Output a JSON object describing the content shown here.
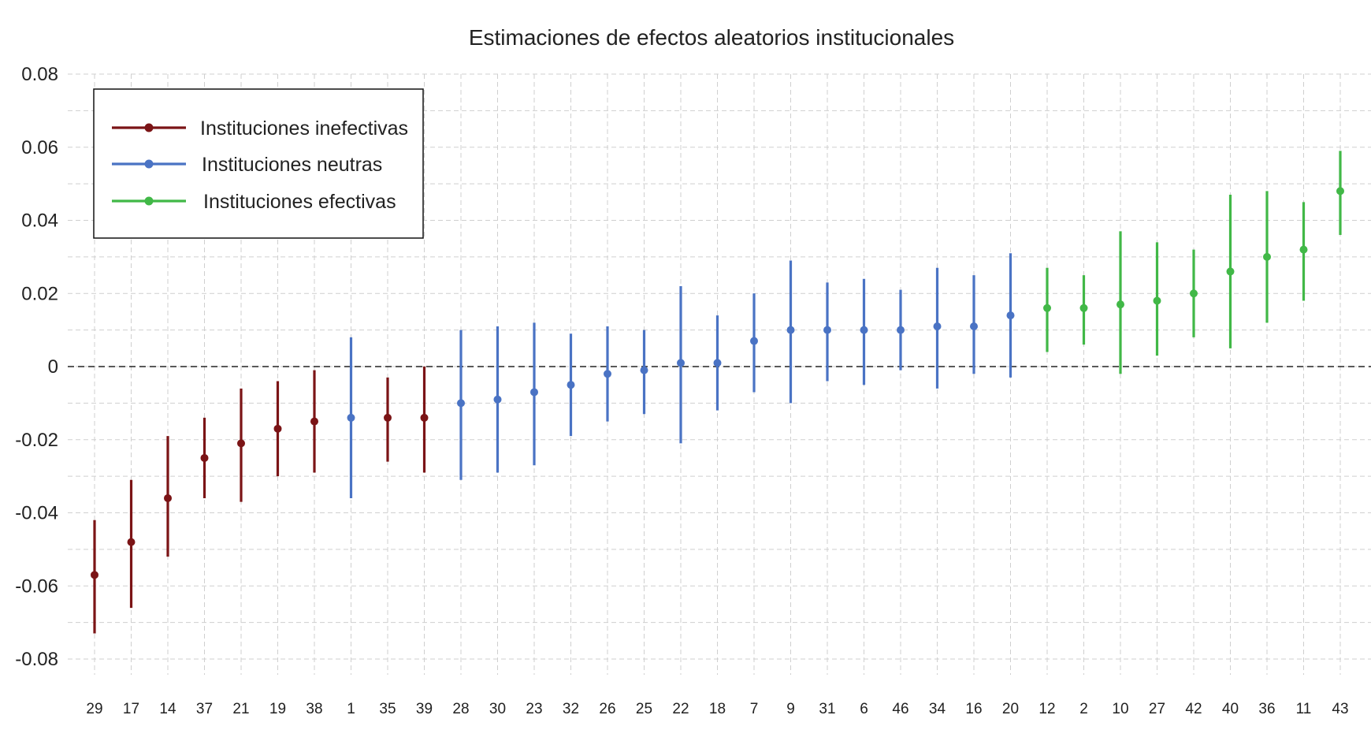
{
  "chart_data": {
    "type": "errorbar",
    "title": "Estimaciones de efectos aleatorios institucionales",
    "xlabel": "",
    "ylabel": "",
    "ylim": [
      -0.08,
      0.08
    ],
    "yticks": [
      0.08,
      0.06,
      0.04,
      0.02,
      0,
      -0.02,
      -0.04,
      -0.06,
      -0.08
    ],
    "ytick_labels": [
      "0.08",
      "0.06",
      "0.04",
      "0.02",
      "0",
      "-0.02",
      "-0.04",
      "-0.06",
      "-0.08"
    ],
    "grid": true,
    "reference_line": 0,
    "legend_position": "top-left",
    "categories": [
      "29",
      "17",
      "14",
      "37",
      "21",
      "19",
      "38",
      "1",
      "35",
      "39",
      "28",
      "30",
      "23",
      "32",
      "26",
      "25",
      "22",
      "18",
      "7",
      "9",
      "31",
      "6",
      "46",
      "34",
      "16",
      "20",
      "12",
      "2",
      "10",
      "27",
      "42",
      "40",
      "36",
      "11",
      "43"
    ],
    "series": [
      {
        "name": "Instituciones inefectivas",
        "color": "#7b1416",
        "points": [
          {
            "x": "29",
            "y": -0.057,
            "low": -0.073,
            "high": -0.042
          },
          {
            "x": "17",
            "y": -0.048,
            "low": -0.066,
            "high": -0.031
          },
          {
            "x": "14",
            "y": -0.036,
            "low": -0.052,
            "high": -0.019
          },
          {
            "x": "37",
            "y": -0.025,
            "low": -0.036,
            "high": -0.014
          },
          {
            "x": "21",
            "y": -0.021,
            "low": -0.037,
            "high": -0.006
          },
          {
            "x": "19",
            "y": -0.017,
            "low": -0.03,
            "high": -0.004
          },
          {
            "x": "38",
            "y": -0.015,
            "low": -0.029,
            "high": -0.001
          },
          {
            "x": "35",
            "y": -0.014,
            "low": -0.026,
            "high": -0.003
          },
          {
            "x": "39",
            "y": -0.014,
            "low": -0.029,
            "high": 0.0
          }
        ]
      },
      {
        "name": "Instituciones neutras",
        "color": "#4a73c4",
        "points": [
          {
            "x": "1",
            "y": -0.014,
            "low": -0.036,
            "high": 0.008
          },
          {
            "x": "28",
            "y": -0.01,
            "low": -0.031,
            "high": 0.01
          },
          {
            "x": "30",
            "y": -0.009,
            "low": -0.029,
            "high": 0.011
          },
          {
            "x": "23",
            "y": -0.007,
            "low": -0.027,
            "high": 0.012
          },
          {
            "x": "32",
            "y": -0.005,
            "low": -0.019,
            "high": 0.009
          },
          {
            "x": "26",
            "y": -0.002,
            "low": -0.015,
            "high": 0.011
          },
          {
            "x": "25",
            "y": -0.001,
            "low": -0.013,
            "high": 0.01
          },
          {
            "x": "22",
            "y": 0.001,
            "low": -0.021,
            "high": 0.022
          },
          {
            "x": "18",
            "y": 0.001,
            "low": -0.012,
            "high": 0.014
          },
          {
            "x": "7",
            "y": 0.007,
            "low": -0.007,
            "high": 0.02
          },
          {
            "x": "9",
            "y": 0.01,
            "low": -0.01,
            "high": 0.029
          },
          {
            "x": "31",
            "y": 0.01,
            "low": -0.004,
            "high": 0.023
          },
          {
            "x": "6",
            "y": 0.01,
            "low": -0.005,
            "high": 0.024
          },
          {
            "x": "46",
            "y": 0.01,
            "low": -0.001,
            "high": 0.021
          },
          {
            "x": "34",
            "y": 0.011,
            "low": -0.006,
            "high": 0.027
          },
          {
            "x": "16",
            "y": 0.011,
            "low": -0.002,
            "high": 0.025
          },
          {
            "x": "20",
            "y": 0.014,
            "low": -0.003,
            "high": 0.031
          }
        ]
      },
      {
        "name": "Instituciones efectivas",
        "color": "#41b847",
        "points": [
          {
            "x": "12",
            "y": 0.016,
            "low": 0.004,
            "high": 0.027
          },
          {
            "x": "2",
            "y": 0.016,
            "low": 0.006,
            "high": 0.025
          },
          {
            "x": "10",
            "y": 0.017,
            "low": -0.002,
            "high": 0.037
          },
          {
            "x": "27",
            "y": 0.018,
            "low": 0.003,
            "high": 0.034
          },
          {
            "x": "42",
            "y": 0.02,
            "low": 0.008,
            "high": 0.032
          },
          {
            "x": "40",
            "y": 0.026,
            "low": 0.005,
            "high": 0.047
          },
          {
            "x": "36",
            "y": 0.03,
            "low": 0.012,
            "high": 0.048
          },
          {
            "x": "11",
            "y": 0.032,
            "low": 0.018,
            "high": 0.045
          },
          {
            "x": "43",
            "y": 0.048,
            "low": 0.036,
            "high": 0.059
          }
        ]
      }
    ]
  }
}
